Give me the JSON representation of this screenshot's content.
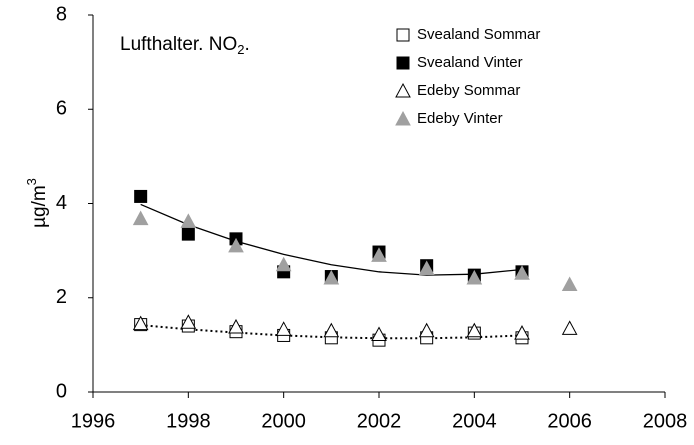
{
  "chart_data": {
    "type": "scatter",
    "title_parts": [
      "Lufthalter. NO",
      "2",
      "."
    ],
    "ylabel_parts": [
      "µg/m",
      "3"
    ],
    "xlim": [
      1996,
      2008
    ],
    "xticks": [
      1996,
      1998,
      2000,
      2002,
      2004,
      2006,
      2008
    ],
    "ylim": [
      0,
      8
    ],
    "yticks": [
      0,
      2,
      4,
      6,
      8
    ],
    "grid": false,
    "legend": "top-right",
    "series": [
      {
        "name": "Svealand Sommar",
        "marker": "square",
        "color": "#000000",
        "fill": "#ffffff",
        "x": [
          1997,
          1998,
          1999,
          2000,
          2001,
          2002,
          2003,
          2004,
          2005
        ],
        "values": [
          1.43,
          1.4,
          1.28,
          1.2,
          1.15,
          1.1,
          1.15,
          1.25,
          1.15
        ]
      },
      {
        "name": "Svealand Vinter",
        "marker": "square",
        "color": "#000000",
        "fill": "#000000",
        "x": [
          1997,
          1998,
          1999,
          2000,
          2001,
          2002,
          2003,
          2004,
          2005
        ],
        "values": [
          4.15,
          3.35,
          3.25,
          2.55,
          2.45,
          2.97,
          2.68,
          2.48,
          2.55
        ]
      },
      {
        "name": "Edeby Sommar",
        "marker": "triangle",
        "color": "#000000",
        "fill": "#ffffff",
        "x": [
          1997,
          1998,
          1999,
          2000,
          2001,
          2002,
          2003,
          2004,
          2005,
          2006
        ],
        "values": [
          1.45,
          1.48,
          1.38,
          1.33,
          1.3,
          1.22,
          1.3,
          1.3,
          1.25,
          1.35
        ]
      },
      {
        "name": "Edeby Vinter",
        "marker": "triangle",
        "color": "#a0a0a0",
        "fill": "#a0a0a0",
        "x": [
          1997,
          1998,
          1999,
          2000,
          2001,
          2002,
          2003,
          2004,
          2005,
          2006
        ],
        "values": [
          3.68,
          3.62,
          3.1,
          2.7,
          2.42,
          2.9,
          2.62,
          2.42,
          2.52,
          2.28
        ]
      }
    ],
    "trendlines": [
      {
        "style": "solid",
        "color": "#000000",
        "x": [
          1997,
          1998,
          1999,
          2000,
          2001,
          2002,
          2003,
          2004,
          2005
        ],
        "values": [
          3.98,
          3.55,
          3.2,
          2.92,
          2.7,
          2.55,
          2.48,
          2.5,
          2.6
        ]
      },
      {
        "style": "dotted",
        "color": "#000000",
        "x": [
          1997,
          1998,
          1999,
          2000,
          2001,
          2002,
          2003,
          2004,
          2005
        ],
        "values": [
          1.42,
          1.33,
          1.26,
          1.2,
          1.16,
          1.14,
          1.14,
          1.16,
          1.2
        ]
      }
    ]
  }
}
